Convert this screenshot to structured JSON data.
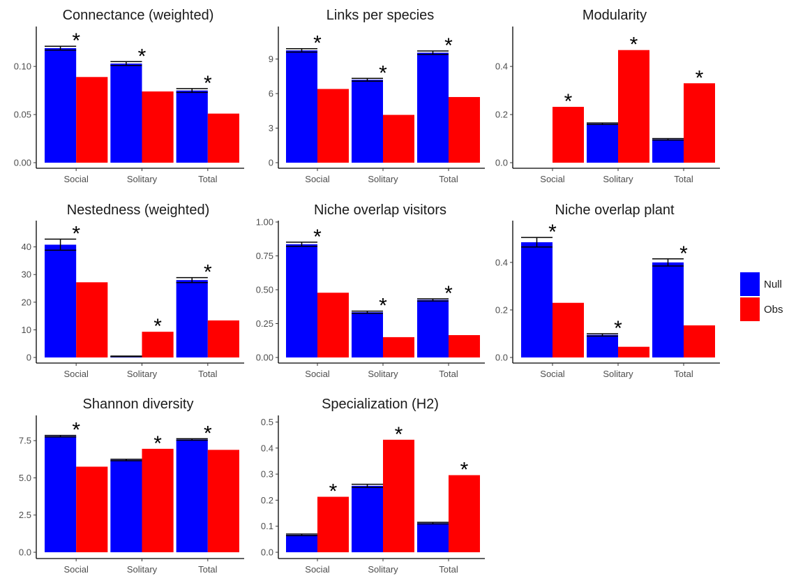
{
  "legend": {
    "items": [
      {
        "label": "Null",
        "color": "#0000FF"
      },
      {
        "label": "Obs",
        "color": "#FF0000"
      }
    ],
    "placement": "right"
  },
  "colors": {
    "null": "#0000FF",
    "obs": "#FF0000",
    "axis": "#000000",
    "tick_label": "#4d4d4d",
    "error_bar": "#000000"
  },
  "chart_data": [
    {
      "type": "bar",
      "title": "Connectance (weighted)",
      "categories": [
        "Social",
        "Solitary",
        "Total"
      ],
      "series": [
        {
          "name": "Null",
          "values": [
            0.119,
            0.103,
            0.075
          ],
          "error": [
            0.002,
            0.002,
            0.002
          ]
        },
        {
          "name": "Obs",
          "values": [
            0.089,
            0.074,
            0.051
          ]
        }
      ],
      "significant": [
        true,
        true,
        true
      ],
      "significance_mark": "*",
      "ylim": [
        0,
        0.14
      ],
      "yticks": [
        0,
        0.05,
        0.1
      ],
      "ytick_labels": [
        "0.00",
        "0.05",
        "0.10"
      ],
      "grid": false
    },
    {
      "type": "bar",
      "title": "Links per species",
      "categories": [
        "Social",
        "Solitary",
        "Total"
      ],
      "series": [
        {
          "name": "Null",
          "values": [
            9.75,
            7.2,
            9.55
          ],
          "error": [
            0.15,
            0.12,
            0.15
          ]
        },
        {
          "name": "Obs",
          "values": [
            6.4,
            4.15,
            5.7
          ]
        }
      ],
      "significant": [
        true,
        true,
        true
      ],
      "significance_mark": "*",
      "ylim": [
        0,
        11.7
      ],
      "yticks": [
        0,
        3,
        6,
        9
      ],
      "ytick_labels": [
        "0",
        "3",
        "6",
        "9"
      ],
      "grid": false
    },
    {
      "type": "bar",
      "title": "Modularity",
      "categories": [
        "Social",
        "Solitary",
        "Total"
      ],
      "series": [
        {
          "name": "Null",
          "values": [
            0.0,
            0.162,
            0.097
          ],
          "error": [
            0.0,
            0.003,
            0.003
          ]
        },
        {
          "name": "Obs",
          "values": [
            0.232,
            0.468,
            0.33
          ]
        }
      ],
      "significant": [
        true,
        true,
        true
      ],
      "significance_mark": "*",
      "ylim": [
        0,
        0.56
      ],
      "yticks": [
        0,
        0.2,
        0.4
      ],
      "ytick_labels": [
        "0.0",
        "0.2",
        "0.4"
      ],
      "grid": false
    },
    {
      "type": "bar",
      "title": "Nestedness (weighted)",
      "categories": [
        "Social",
        "Solitary",
        "Total"
      ],
      "series": [
        {
          "name": "Null",
          "values": [
            40.8,
            0.4,
            28.0
          ],
          "error": [
            2.0,
            0.1,
            0.9
          ]
        },
        {
          "name": "Obs",
          "values": [
            27.2,
            9.3,
            13.4
          ]
        }
      ],
      "significant": [
        true,
        true,
        true
      ],
      "significance_mark": "*",
      "ylim": [
        0,
        49
      ],
      "yticks": [
        0,
        10,
        20,
        30,
        40
      ],
      "ytick_labels": [
        "0",
        "10",
        "20",
        "30",
        "40"
      ],
      "grid": false
    },
    {
      "type": "bar",
      "title": "Niche overlap visitors",
      "categories": [
        "Social",
        "Solitary",
        "Total"
      ],
      "series": [
        {
          "name": "Null",
          "values": [
            0.836,
            0.334,
            0.425
          ],
          "error": [
            0.015,
            0.008,
            0.008
          ]
        },
        {
          "name": "Obs",
          "values": [
            0.478,
            0.15,
            0.165
          ]
        }
      ],
      "significant": [
        true,
        true,
        true
      ],
      "significance_mark": "*",
      "ylim": [
        0,
        1.0
      ],
      "yticks": [
        0,
        0.25,
        0.5,
        0.75,
        1.0
      ],
      "ytick_labels": [
        "0.00",
        "0.25",
        "0.50",
        "0.75",
        "1.00"
      ],
      "grid": false
    },
    {
      "type": "bar",
      "title": "Niche overlap plant",
      "categories": [
        "Social",
        "Solitary",
        "Total"
      ],
      "series": [
        {
          "name": "Null",
          "values": [
            0.485,
            0.095,
            0.4
          ],
          "error": [
            0.02,
            0.005,
            0.015
          ]
        },
        {
          "name": "Obs",
          "values": [
            0.23,
            0.045,
            0.135
          ]
        }
      ],
      "significant": [
        true,
        true,
        true
      ],
      "significance_mark": "*",
      "ylim": [
        0,
        0.57
      ],
      "yticks": [
        0,
        0.2,
        0.4
      ],
      "ytick_labels": [
        "0.0",
        "0.2",
        "0.4"
      ],
      "grid": false
    },
    {
      "type": "bar",
      "title": "Shannon diversity",
      "categories": [
        "Social",
        "Solitary",
        "Total"
      ],
      "series": [
        {
          "name": "Null",
          "values": [
            7.8,
            6.2,
            7.58
          ],
          "error": [
            0.05,
            0.05,
            0.05
          ]
        },
        {
          "name": "Obs",
          "values": [
            5.75,
            6.95,
            6.88
          ]
        }
      ],
      "significant": [
        true,
        true,
        true
      ],
      "significance_mark": "*",
      "ylim": [
        0,
        9.1
      ],
      "yticks": [
        0,
        2.5,
        5,
        7.5
      ],
      "ytick_labels": [
        "0.0",
        "2.5",
        "5.0",
        "7.5"
      ],
      "grid": false
    },
    {
      "type": "bar",
      "title": "Specialization (H2)",
      "categories": [
        "Social",
        "Solitary",
        "Total"
      ],
      "series": [
        {
          "name": "Null",
          "values": [
            0.067,
            0.255,
            0.112
          ],
          "error": [
            0.003,
            0.006,
            0.003
          ]
        },
        {
          "name": "Obs",
          "values": [
            0.213,
            0.432,
            0.296
          ]
        }
      ],
      "significant": [
        true,
        true,
        true
      ],
      "significance_mark": "*",
      "ylim": [
        0,
        0.52
      ],
      "yticks": [
        0,
        0.1,
        0.2,
        0.3,
        0.4,
        0.5
      ],
      "ytick_labels": [
        "0.0",
        "0.1",
        "0.2",
        "0.3",
        "0.4",
        "0.5"
      ],
      "grid": false
    }
  ]
}
